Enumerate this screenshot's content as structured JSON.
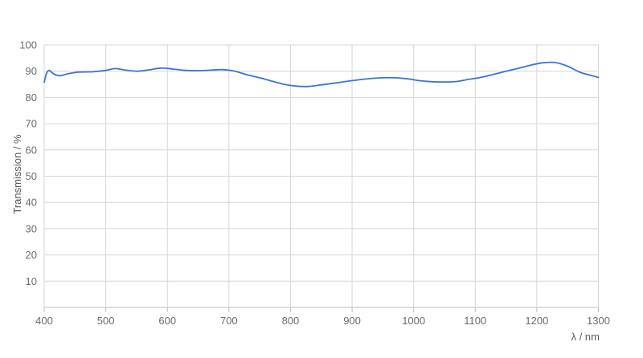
{
  "chart_data": {
    "type": "line",
    "title": "",
    "xlabel": "λ / nm",
    "ylabel": "Transmission / %",
    "xlim": [
      400,
      1300
    ],
    "ylim": [
      0,
      100
    ],
    "x_ticks": [
      400,
      500,
      600,
      700,
      800,
      900,
      1000,
      1100,
      1200,
      1300
    ],
    "y_ticks": [
      10,
      20,
      30,
      40,
      50,
      60,
      70,
      80,
      90,
      100
    ],
    "grid": true,
    "legend": false,
    "series": [
      {
        "name": "Transmission",
        "color": "#3b73d9",
        "x": [
          400,
          404,
          408,
          412,
          416,
          420,
          425,
          430,
          440,
          450,
          460,
          480,
          500,
          515,
          530,
          550,
          570,
          590,
          610,
          630,
          650,
          670,
          690,
          710,
          730,
          750,
          770,
          790,
          810,
          830,
          850,
          870,
          890,
          910,
          930,
          950,
          970,
          990,
          1010,
          1030,
          1050,
          1070,
          1090,
          1110,
          1130,
          1150,
          1170,
          1190,
          1210,
          1230,
          1250,
          1270,
          1285,
          1300
        ],
        "y": [
          85.8,
          89.3,
          90.3,
          89.6,
          88.9,
          88.5,
          88.3,
          88.5,
          89.1,
          89.5,
          89.7,
          89.8,
          90.3,
          91.0,
          90.5,
          90.0,
          90.5,
          91.2,
          90.8,
          90.3,
          90.2,
          90.4,
          90.6,
          90.0,
          88.6,
          87.5,
          86.2,
          85.0,
          84.3,
          84.2,
          84.8,
          85.4,
          86.1,
          86.7,
          87.2,
          87.5,
          87.5,
          87.1,
          86.4,
          86.0,
          85.9,
          86.1,
          86.9,
          87.7,
          88.8,
          90.0,
          91.1,
          92.3,
          93.2,
          93.3,
          91.9,
          89.6,
          88.6,
          87.6
        ]
      }
    ],
    "colors": {
      "background": "#ffffff",
      "gridline": "#d6d6d6",
      "axis_line": "#bdbdbd",
      "tick_label": "#6b6b6b",
      "axis_title": "#595959"
    }
  }
}
